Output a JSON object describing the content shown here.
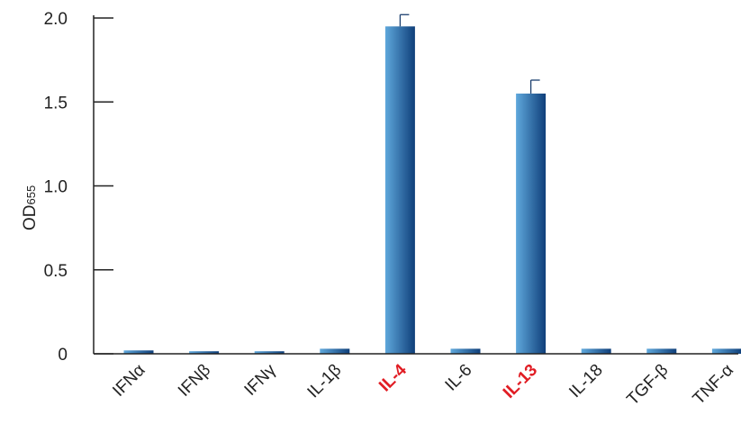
{
  "chart_data": {
    "type": "bar",
    "categories": [
      "IFNα",
      "IFNβ",
      "IFNγ",
      "IL-1β",
      "IL-4",
      "IL-6",
      "IL-13",
      "IL-18",
      "TGF-β",
      "TNF-α"
    ],
    "highlighted": [
      "IL-4",
      "IL-13"
    ],
    "values": [
      0.02,
      0.015,
      0.015,
      0.03,
      1.95,
      0.03,
      1.55,
      0.03,
      0.03,
      0.03
    ],
    "errors": [
      0.005,
      0.005,
      0.005,
      0.005,
      0.07,
      0.005,
      0.08,
      0.005,
      0.005,
      0.005
    ],
    "ylabel": {
      "main": "OD",
      "sub": "655"
    },
    "ylim": [
      0,
      2.0
    ],
    "yticks": [
      0,
      0.5,
      1.0,
      1.5,
      2.0
    ],
    "ytick_labels": [
      "0",
      "0.5",
      "1.0",
      "1.5",
      "2.0"
    ],
    "grid": false,
    "colors": {
      "bar_light": "#5fa8dc",
      "bar_dark": "#0f3f7a",
      "highlight_label": "#e11d24",
      "axis": "#222222"
    }
  }
}
